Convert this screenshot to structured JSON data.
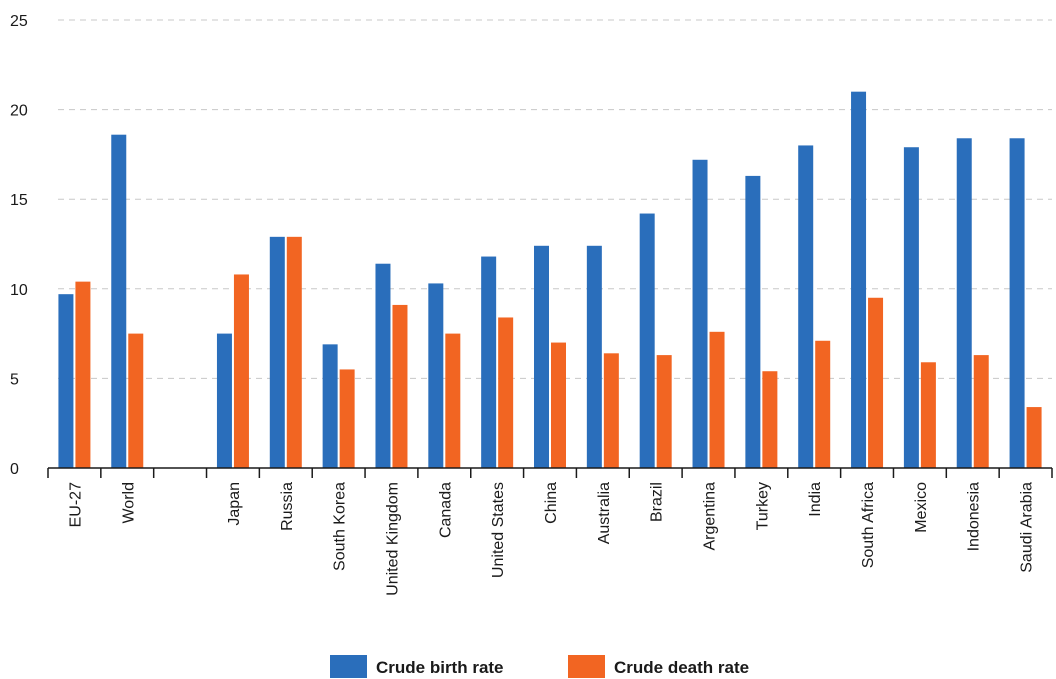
{
  "chart_data": {
    "type": "bar",
    "categories": [
      "EU-27",
      "World",
      "",
      "Japan",
      "Russia",
      "South Korea",
      "United Kingdom",
      "Canada",
      "United States",
      "China",
      "Australia",
      "Brazil",
      "Argentina",
      "Turkey",
      "India",
      "South Africa",
      "Mexico",
      "Indonesia",
      "Saudi Arabia"
    ],
    "series": [
      {
        "name": "Crude birth rate",
        "color": "#2a6ebb",
        "values": [
          9.7,
          18.6,
          null,
          7.5,
          12.9,
          6.9,
          11.4,
          10.3,
          11.8,
          12.4,
          12.4,
          14.2,
          17.2,
          16.3,
          18.0,
          21.0,
          17.9,
          18.4,
          18.4
        ]
      },
      {
        "name": "Crude death rate",
        "color": "#f26522",
        "values": [
          10.4,
          7.5,
          null,
          10.8,
          12.9,
          5.5,
          9.1,
          7.5,
          8.4,
          7.0,
          6.4,
          6.3,
          7.6,
          5.4,
          7.1,
          9.5,
          5.9,
          6.3,
          3.4
        ]
      }
    ],
    "ylim": [
      0,
      25
    ],
    "yticks": [
      0,
      5,
      10,
      15,
      20,
      25
    ],
    "grid": true,
    "legend": "bottom-center"
  }
}
